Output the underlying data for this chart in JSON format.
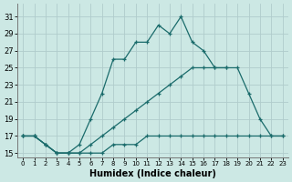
{
  "xlabel": "Humidex (Indice chaleur)",
  "background_color": "#cce8e4",
  "grid_color": "#b0cccc",
  "line_color": "#1a6b6b",
  "xlim": [
    -0.5,
    23.5
  ],
  "ylim": [
    14.5,
    32.5
  ],
  "xticks": [
    0,
    1,
    2,
    3,
    4,
    5,
    6,
    7,
    8,
    9,
    10,
    11,
    12,
    13,
    14,
    15,
    16,
    17,
    18,
    19,
    20,
    21,
    22,
    23
  ],
  "yticks": [
    15,
    17,
    19,
    21,
    23,
    25,
    27,
    29,
    31
  ],
  "line1": {
    "x": [
      0,
      1,
      2,
      3,
      4,
      5,
      6,
      7,
      8,
      9,
      10,
      11,
      12,
      13,
      14,
      15,
      16,
      17,
      18
    ],
    "y": [
      17,
      17,
      16,
      15,
      15,
      16,
      19,
      22,
      26,
      26,
      28,
      28,
      30,
      29,
      31,
      28,
      27,
      25,
      25
    ]
  },
  "line2": {
    "x": [
      0,
      1,
      2,
      3,
      4,
      5,
      6,
      7,
      8,
      9,
      10,
      11,
      12,
      13,
      14,
      15,
      16,
      17,
      18,
      19,
      20,
      21,
      22,
      23
    ],
    "y": [
      17,
      17,
      16,
      15,
      15,
      15,
      16,
      17,
      18,
      19,
      20,
      21,
      22,
      23,
      24,
      25,
      25,
      25,
      25,
      25,
      22,
      19,
      17,
      17
    ]
  },
  "line3": {
    "x": [
      0,
      1,
      2,
      3,
      4,
      5,
      6,
      7,
      8,
      9,
      10,
      11,
      12,
      13,
      14,
      15,
      16,
      17,
      18,
      19,
      20,
      21,
      22,
      23
    ],
    "y": [
      17,
      17,
      16,
      15,
      15,
      15,
      15,
      15,
      16,
      16,
      16,
      17,
      17,
      17,
      17,
      17,
      17,
      17,
      17,
      17,
      17,
      17,
      17,
      17
    ]
  }
}
